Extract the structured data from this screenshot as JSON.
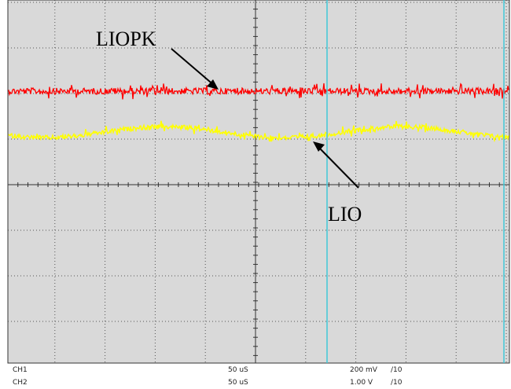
{
  "chart_data": {
    "type": "line",
    "title": "",
    "xlabel": "",
    "ylabel": "",
    "grid": true,
    "background_color": "#d9d9d9",
    "series": [
      {
        "name": "LIOPK",
        "color": "#ff0000",
        "level_divs": 2.0,
        "noise_divs": 0.07,
        "wave_divs": 0
      },
      {
        "name": "LIO",
        "color": "#ffff00",
        "level_divs": 2.9,
        "noise_divs": 0.05,
        "wave_divs": 0.12
      }
    ],
    "annotations": [
      {
        "text": "LIOPK",
        "points_to": "LIOPK"
      },
      {
        "text": "LIO",
        "points_to": "LIO"
      }
    ],
    "cursor_color": "#40c8d8"
  },
  "status_bar": {
    "rows": [
      {
        "channel": "CH1",
        "timebase": "50 uS",
        "volts": "200 mV",
        "probe": "/10"
      },
      {
        "channel": "CH2",
        "timebase": "50 uS",
        "volts": "1.00 V",
        "probe": "/10"
      }
    ]
  }
}
